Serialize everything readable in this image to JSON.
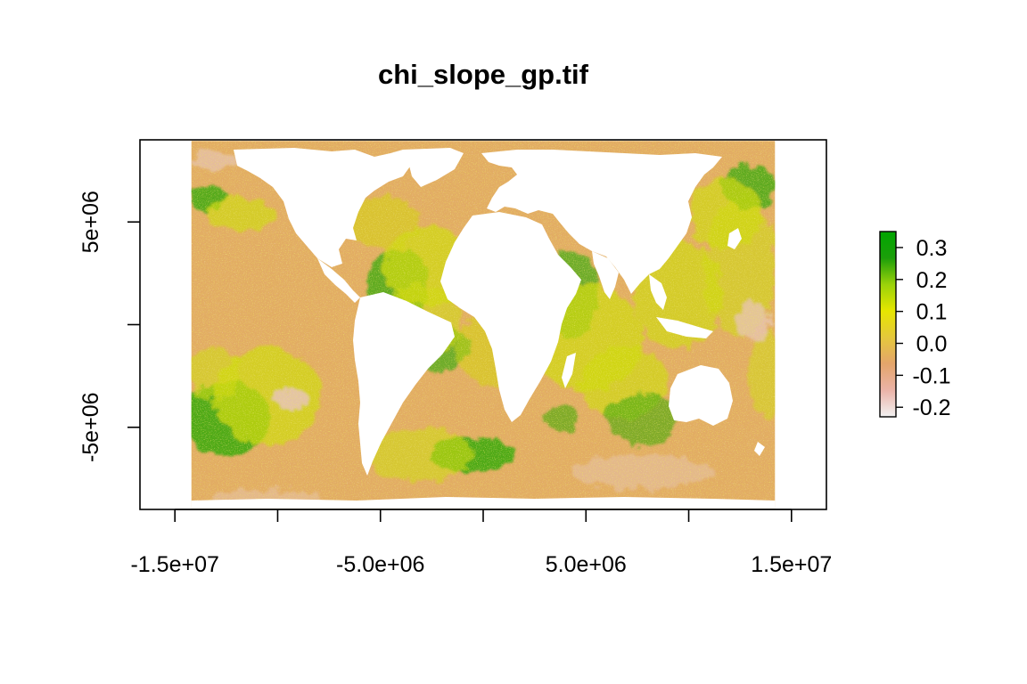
{
  "chart_data": {
    "type": "heatmap",
    "title": "chi_slope_gp.tif",
    "xlabel": "",
    "ylabel": "",
    "x_ticks": [
      {
        "value": -15000000,
        "label": "-1.5e+07"
      },
      {
        "value": -10000000,
        "label": ""
      },
      {
        "value": -5000000,
        "label": "-5.0e+06"
      },
      {
        "value": 0,
        "label": ""
      },
      {
        "value": 5000000,
        "label": "5.0e+06"
      },
      {
        "value": 10000000,
        "label": ""
      },
      {
        "value": 15000000,
        "label": "1.5e+07"
      }
    ],
    "y_ticks": [
      {
        "value": 5000000,
        "label": "5e+06"
      },
      {
        "value": 0,
        "label": ""
      },
      {
        "value": -5000000,
        "label": "-5e+06"
      }
    ],
    "xlim": [
      -16700000,
      16700000
    ],
    "ylim": [
      -9000000,
      9000000
    ],
    "raster_extent": {
      "xmin": -14200000,
      "xmax": 14200000,
      "ymin": -8950000,
      "ymax": 8950000
    },
    "legend": {
      "position": "right",
      "range": [
        -0.23,
        0.35
      ],
      "ticks": [
        {
          "value": 0.3,
          "label": "0.3"
        },
        {
          "value": 0.2,
          "label": "0.2"
        },
        {
          "value": 0.1,
          "label": "0.1"
        },
        {
          "value": 0.0,
          "label": "0.0"
        },
        {
          "value": -0.1,
          "label": "-0.1"
        },
        {
          "value": -0.2,
          "label": "-0.2"
        }
      ],
      "colors": [
        "#f2f2f2",
        "#ebb3a8",
        "#e4a56b",
        "#e5c83c",
        "#e6e600",
        "#9ad20a",
        "#1c9e0a",
        "#00a600"
      ]
    },
    "colors": {
      "ocean_base": "#e2ac63",
      "land": "#ffffff",
      "high": "#3da90a",
      "mid": "#cfd80c",
      "low": "#e7c3b2"
    }
  }
}
